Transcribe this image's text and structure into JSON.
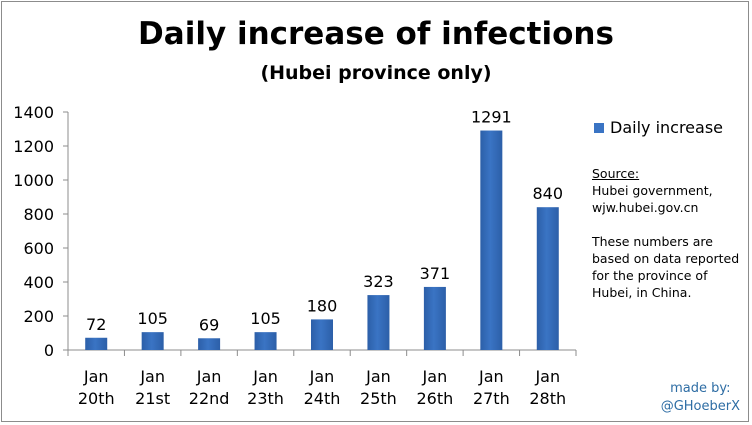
{
  "chart_data": {
    "type": "bar",
    "title": "Daily increase of infections",
    "subtitle": "(Hubei province only)",
    "categories": [
      [
        "Jan",
        "20th"
      ],
      [
        "Jan",
        "21st"
      ],
      [
        "Jan",
        "22nd"
      ],
      [
        "Jan",
        "23th"
      ],
      [
        "Jan",
        "24th"
      ],
      [
        "Jan",
        "25th"
      ],
      [
        "Jan",
        "26th"
      ],
      [
        "Jan",
        "27th"
      ],
      [
        "Jan",
        "28th"
      ]
    ],
    "series": [
      {
        "name": "Daily increase",
        "values": [
          72,
          105,
          69,
          105,
          180,
          323,
          371,
          1291,
          840
        ],
        "color": "#3a74c4"
      }
    ],
    "ylim": [
      0,
      1400
    ],
    "yticks": [
      0,
      200,
      400,
      600,
      800,
      1000,
      1200,
      1400
    ],
    "xlabel": "",
    "ylabel": "",
    "grid": false,
    "legend_position": "right",
    "data_labels": true
  },
  "source": {
    "heading": "Source:",
    "lines": [
      "Hubei government,",
      "wjw.hubei.gov.cn"
    ],
    "note": "These numbers are based on data reported for the province of Hubei, in China."
  },
  "credit": {
    "line1": "made by:",
    "line2": "@GHoeberX"
  }
}
